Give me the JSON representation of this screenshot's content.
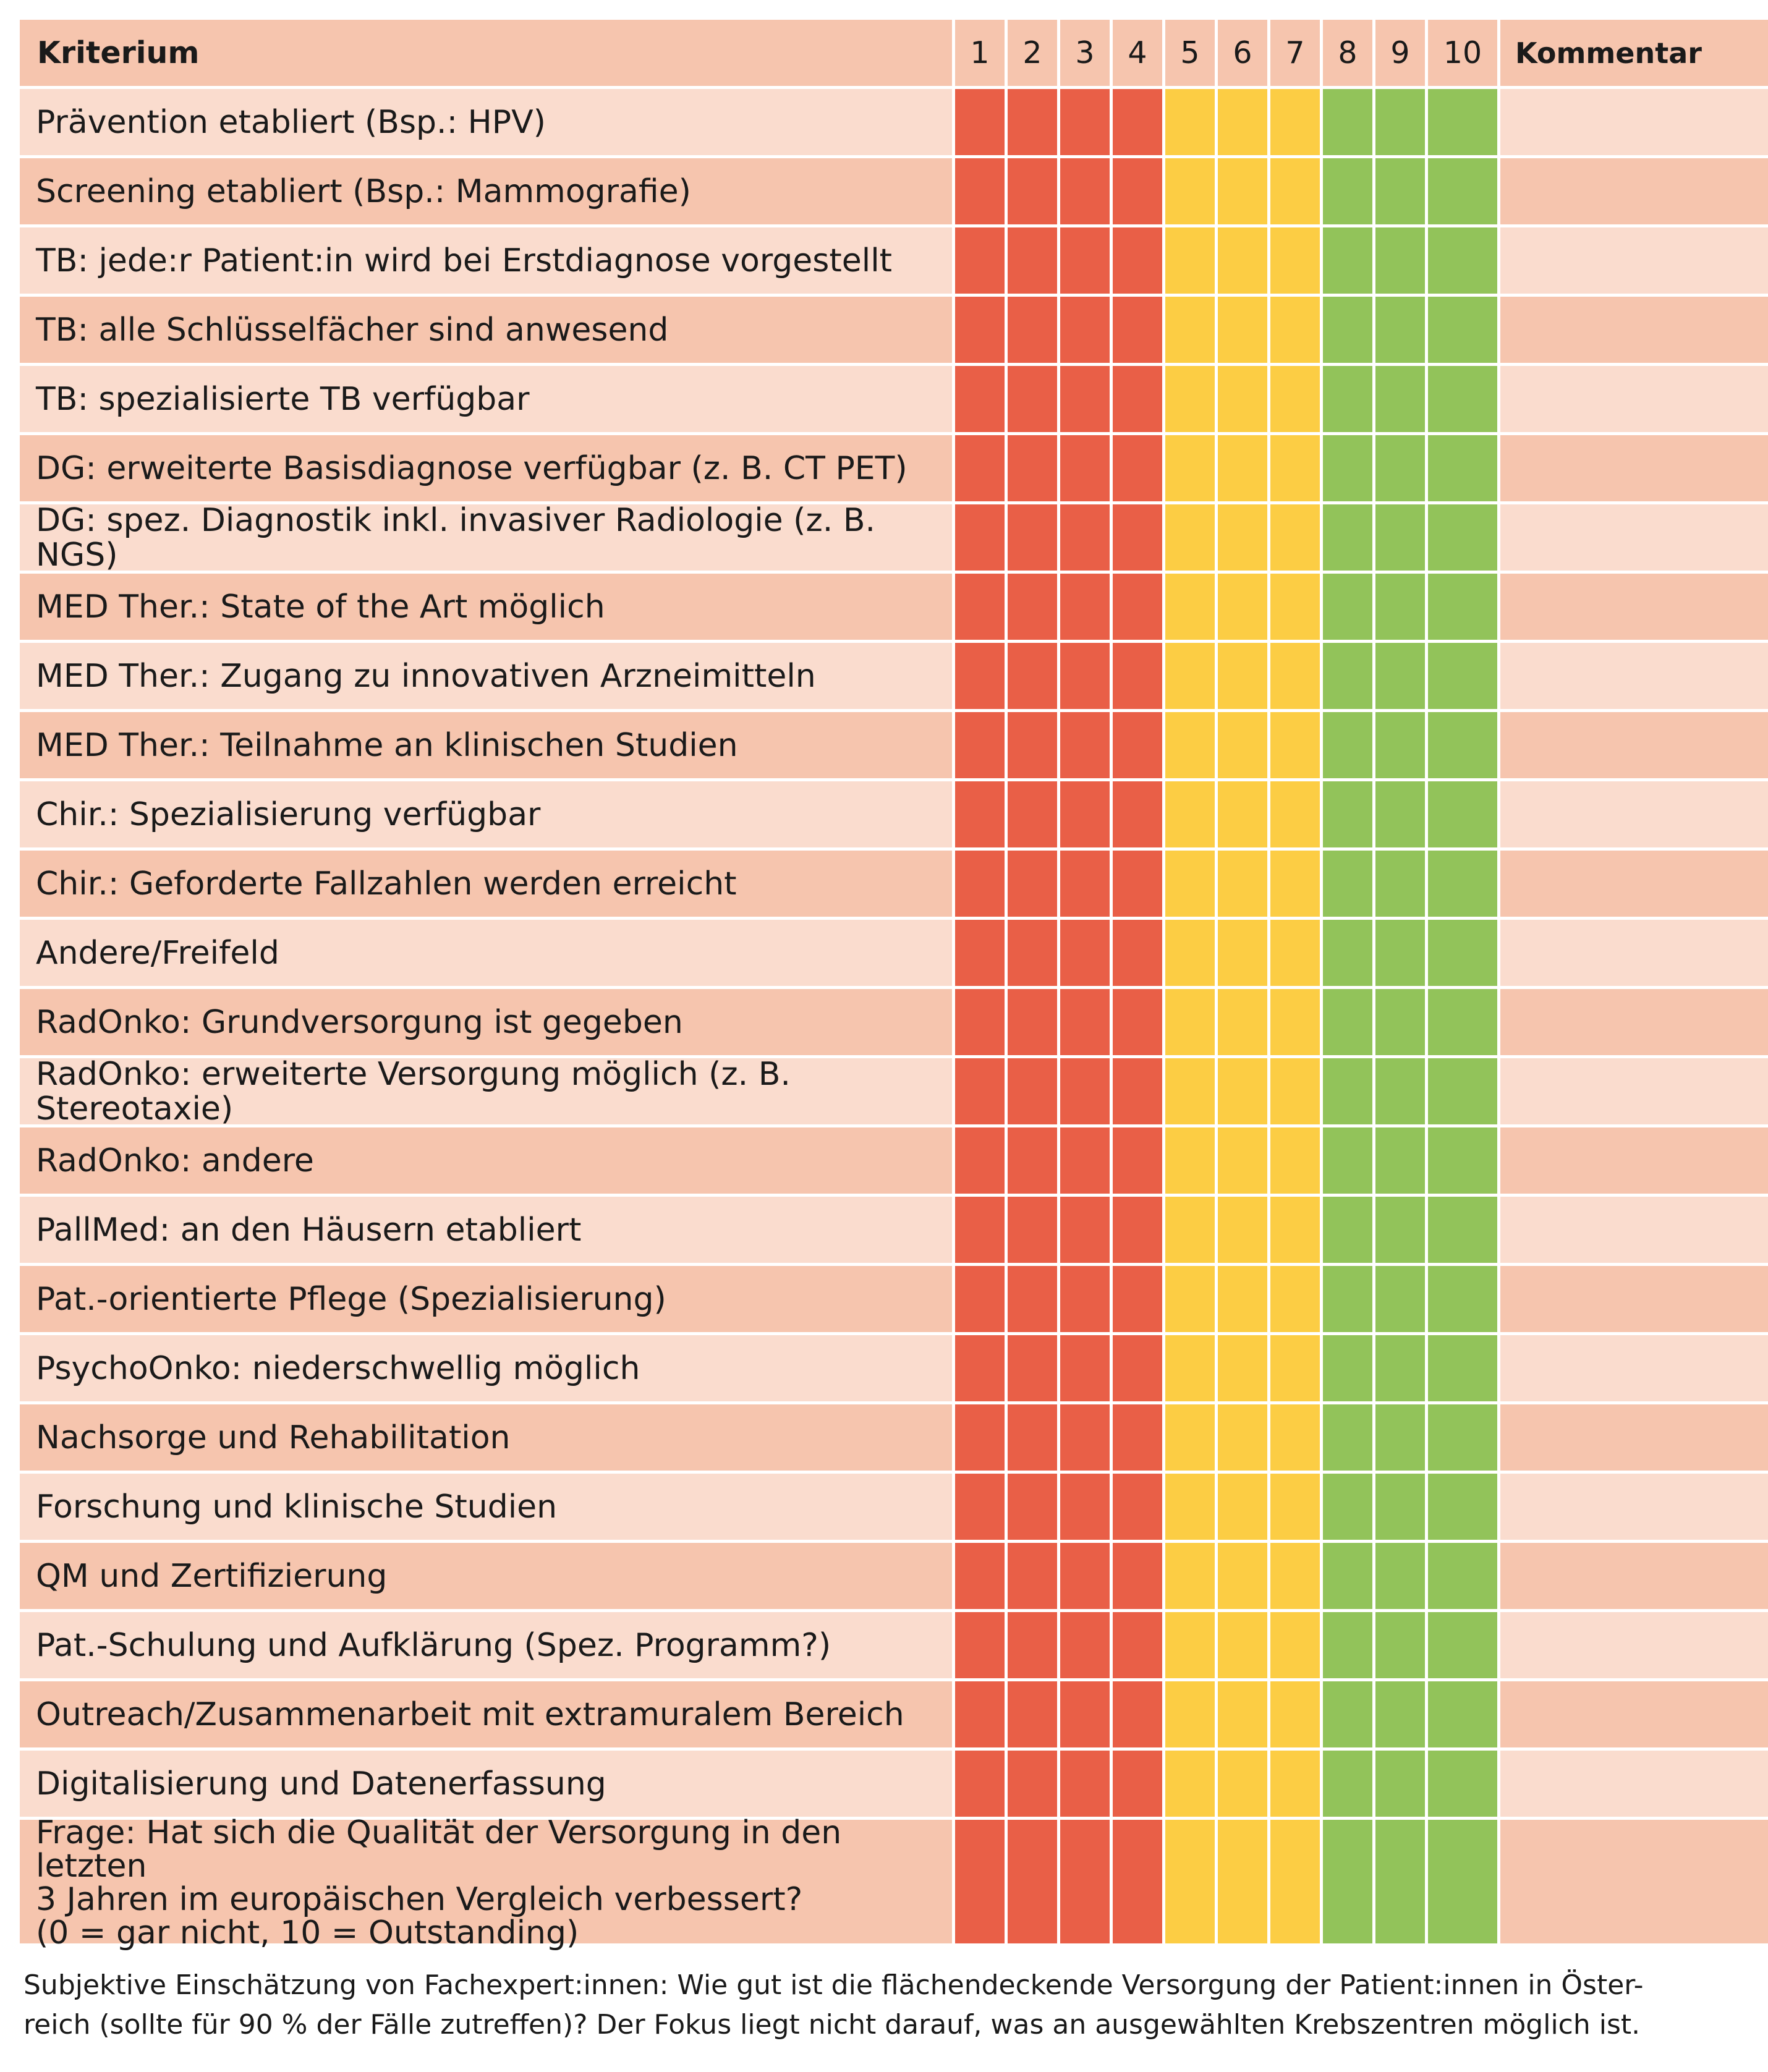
{
  "header": {
    "criterion_label": "Kriterium",
    "scores": [
      "1",
      "2",
      "3",
      "4",
      "5",
      "6",
      "7",
      "8",
      "9",
      "10"
    ],
    "comment_label": "Kommentar"
  },
  "score_colors": {
    "low": "#e95f47",
    "mid": "#fccd44",
    "high": "#92c35a"
  },
  "row_colors": {
    "light": "#fadcce",
    "dark": "#f6c5ae"
  },
  "criteria": [
    "Prävention etabliert (Bsp.: HPV)",
    "Screening etabliert (Bsp.: Mammografie)",
    "TB: jede:r Patient:in wird bei Erstdiagnose vorgestellt",
    "TB: alle Schlüsselfächer sind anwesend",
    "TB: spezialisierte TB verfügbar",
    "DG: erweiterte Basisdiagnose verfügbar (z. B. CT PET)",
    "DG: spez. Diagnostik inkl. invasiver Radiologie (z. B. NGS)",
    "MED Ther.: State of the Art möglich",
    "MED Ther.: Zugang zu innovativen Arzneimitteln",
    "MED Ther.: Teilnahme an klinischen Studien",
    "Chir.: Spezialisierung verfügbar",
    "Chir.: Geforderte Fallzahlen werden erreicht",
    "Andere/Freifeld",
    "RadOnko: Grundversorgung ist gegeben",
    "RadOnko: erweiterte Versorgung möglich (z. B. Stereotaxie)",
    "RadOnko: andere",
    "PallMed: an den Häusern etabliert",
    "Pat.-orientierte Pflege (Spezialisierung)",
    "PsychoOnko: niederschwellig möglich",
    "Nachsorge und Rehabilitation",
    "Forschung und klinische Studien",
    "QM und Zertifizierung",
    "Pat.-Schulung und Aufklärung (Spez. Programm?)",
    "Outreach/Zusammenarbeit mit extramuralem Bereich",
    "Digitalisierung und Datenerfassung"
  ],
  "question": {
    "line1": "Frage: Hat sich die Qualität der Versorgung in den letzten",
    "line2": "3 Jahren im europäischen Vergleich verbessert?",
    "line3": "(0 = gar nicht, 10 = Outstanding)"
  },
  "footnote": {
    "line1": "Subjektive Einschätzung von Fachexpert:innen: Wie gut ist die flächendeckende Versorgung der Patient:innen in Öster-",
    "line2": "reich (sollte für 90 % der Fälle zutreffen)? Der Fokus liegt nicht darauf, was an ausgewählten Krebszentren möglich ist."
  }
}
